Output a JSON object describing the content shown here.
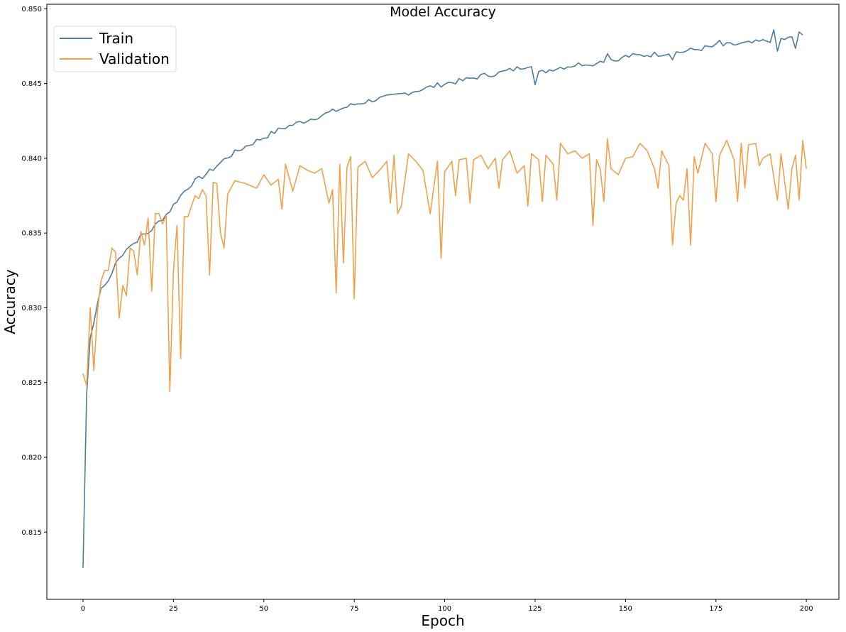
{
  "chart_data": {
    "type": "line",
    "title": "Model Accuracy",
    "xlabel": "Epoch",
    "ylabel": "Accuracy",
    "xlim": [
      -10,
      209
    ],
    "ylim": [
      0.8105,
      0.8503
    ],
    "xticks": [
      0,
      25,
      50,
      75,
      100,
      125,
      150,
      175,
      200
    ],
    "yticks": [
      0.815,
      0.82,
      0.825,
      0.83,
      0.835,
      0.84,
      0.845,
      0.85
    ],
    "ytick_labels": [
      "0.815",
      "0.820",
      "0.825",
      "0.830",
      "0.835",
      "0.840",
      "0.845",
      "0.850"
    ],
    "grid": false,
    "legend_position": "top-left",
    "series": [
      {
        "name": "Train",
        "color": "#4f7c9e",
        "anchors": [
          [
            0,
            0.8126
          ],
          [
            1,
            0.8242
          ],
          [
            2,
            0.828
          ],
          [
            3,
            0.829
          ],
          [
            4,
            0.8303
          ],
          [
            5,
            0.8313
          ],
          [
            6,
            0.8315
          ],
          [
            7,
            0.8318
          ],
          [
            8,
            0.8323
          ],
          [
            9,
            0.833
          ],
          [
            10,
            0.8333
          ],
          [
            12,
            0.834
          ],
          [
            14,
            0.8343
          ],
          [
            16,
            0.8348
          ],
          [
            18,
            0.835
          ],
          [
            20,
            0.8355
          ],
          [
            22,
            0.836
          ],
          [
            24,
            0.8365
          ],
          [
            26,
            0.8372
          ],
          [
            28,
            0.8378
          ],
          [
            30,
            0.8383
          ],
          [
            35,
            0.8391
          ],
          [
            40,
            0.8401
          ],
          [
            45,
            0.8408
          ],
          [
            50,
            0.8414
          ],
          [
            55,
            0.842
          ],
          [
            60,
            0.8424
          ],
          [
            65,
            0.8428
          ],
          [
            70,
            0.8432
          ],
          [
            75,
            0.8436
          ],
          [
            80,
            0.8439
          ],
          [
            85,
            0.8441
          ],
          [
            90,
            0.8444
          ],
          [
            95,
            0.8447
          ],
          [
            100,
            0.845
          ],
          [
            105,
            0.8452
          ],
          [
            110,
            0.8455
          ],
          [
            115,
            0.8457
          ],
          [
            120,
            0.846
          ],
          [
            124,
            0.8463
          ],
          [
            125,
            0.8456
          ],
          [
            130,
            0.846
          ],
          [
            135,
            0.8462
          ],
          [
            140,
            0.8464
          ],
          [
            145,
            0.8466
          ],
          [
            150,
            0.8468
          ],
          [
            155,
            0.8469
          ],
          [
            160,
            0.847
          ],
          [
            165,
            0.8471
          ],
          [
            170,
            0.8473
          ],
          [
            175,
            0.8475
          ],
          [
            180,
            0.8476
          ],
          [
            185,
            0.8477
          ],
          [
            190,
            0.8479
          ],
          [
            195,
            0.848
          ],
          [
            199,
            0.8481
          ]
        ],
        "noise": 0.00018,
        "dips": [
          [
            125,
            0.0007
          ],
          [
            141,
            0.0003
          ],
          [
            148,
            0.0003
          ],
          [
            163,
            0.0003
          ],
          [
            192,
            0.0008
          ],
          [
            197,
            0.0007
          ]
        ],
        "peaks": [
          [
            191,
            0.0005
          ],
          [
            198,
            0.0004
          ],
          [
            145,
            0.0004
          ],
          [
            176,
            0.0003
          ]
        ]
      },
      {
        "name": "Validation",
        "color": "#f0a04b",
        "anchors": [
          [
            0,
            0.8256
          ],
          [
            1,
            0.8248
          ],
          [
            2,
            0.83
          ],
          [
            3,
            0.8258
          ],
          [
            4,
            0.8298
          ],
          [
            5,
            0.8318
          ],
          [
            6,
            0.8325
          ],
          [
            7,
            0.8325
          ],
          [
            8,
            0.834
          ],
          [
            9,
            0.8337
          ],
          [
            10,
            0.8293
          ],
          [
            11,
            0.8315
          ],
          [
            12,
            0.8308
          ],
          [
            13,
            0.834
          ],
          [
            14,
            0.8338
          ],
          [
            15,
            0.8322
          ],
          [
            16,
            0.8351
          ],
          [
            17,
            0.8342
          ],
          [
            18,
            0.836
          ],
          [
            19,
            0.8311
          ],
          [
            20,
            0.8363
          ],
          [
            21,
            0.8363
          ],
          [
            22,
            0.8356
          ],
          [
            23,
            0.8362
          ],
          [
            24,
            0.8244
          ],
          [
            25,
            0.8325
          ],
          [
            26,
            0.8355
          ],
          [
            27,
            0.8266
          ],
          [
            28,
            0.8361
          ],
          [
            29,
            0.8361
          ],
          [
            30,
            0.8368
          ],
          [
            31,
            0.8375
          ],
          [
            32,
            0.8373
          ],
          [
            33,
            0.8379
          ],
          [
            34,
            0.8375
          ],
          [
            35,
            0.8322
          ],
          [
            36,
            0.8384
          ],
          [
            37,
            0.8383
          ],
          [
            38,
            0.835
          ],
          [
            39,
            0.834
          ],
          [
            40,
            0.8376
          ],
          [
            42,
            0.8385
          ],
          [
            45,
            0.8383
          ],
          [
            48,
            0.838
          ],
          [
            50,
            0.8389
          ],
          [
            52,
            0.8382
          ],
          [
            54,
            0.8386
          ],
          [
            55,
            0.8366
          ],
          [
            56,
            0.8396
          ],
          [
            58,
            0.8378
          ],
          [
            60,
            0.8395
          ],
          [
            62,
            0.8392
          ],
          [
            64,
            0.839
          ],
          [
            66,
            0.8393
          ],
          [
            68,
            0.837
          ],
          [
            69,
            0.8379
          ],
          [
            70,
            0.831
          ],
          [
            71,
            0.8396
          ],
          [
            72,
            0.833
          ],
          [
            73,
            0.8394
          ],
          [
            74,
            0.8401
          ],
          [
            75,
            0.8306
          ],
          [
            76,
            0.8394
          ],
          [
            78,
            0.8398
          ],
          [
            80,
            0.8387
          ],
          [
            82,
            0.8392
          ],
          [
            84,
            0.8398
          ],
          [
            85,
            0.837
          ],
          [
            86,
            0.8402
          ],
          [
            87,
            0.8363
          ],
          [
            88,
            0.8368
          ],
          [
            90,
            0.8403
          ],
          [
            92,
            0.8398
          ],
          [
            94,
            0.8392
          ],
          [
            96,
            0.8363
          ],
          [
            98,
            0.8398
          ],
          [
            99,
            0.8333
          ],
          [
            100,
            0.8391
          ],
          [
            102,
            0.8398
          ],
          [
            103,
            0.8375
          ],
          [
            104,
            0.8399
          ],
          [
            106,
            0.84
          ],
          [
            107,
            0.837
          ],
          [
            108,
            0.8399
          ],
          [
            110,
            0.8402
          ],
          [
            112,
            0.8393
          ],
          [
            114,
            0.84
          ],
          [
            115,
            0.838
          ],
          [
            116,
            0.8399
          ],
          [
            118,
            0.8405
          ],
          [
            120,
            0.839
          ],
          [
            122,
            0.8395
          ],
          [
            123,
            0.8368
          ],
          [
            124,
            0.8403
          ],
          [
            126,
            0.8399
          ],
          [
            127,
            0.8371
          ],
          [
            128,
            0.8402
          ],
          [
            130,
            0.8396
          ],
          [
            131,
            0.8372
          ],
          [
            132,
            0.841
          ],
          [
            134,
            0.8403
          ],
          [
            136,
            0.8405
          ],
          [
            138,
            0.84
          ],
          [
            140,
            0.8403
          ],
          [
            141,
            0.8355
          ],
          [
            142,
            0.8399
          ],
          [
            143,
            0.8393
          ],
          [
            144,
            0.8371
          ],
          [
            145,
            0.8413
          ],
          [
            146,
            0.8393
          ],
          [
            148,
            0.8389
          ],
          [
            150,
            0.84
          ],
          [
            152,
            0.8401
          ],
          [
            154,
            0.841
          ],
          [
            156,
            0.8405
          ],
          [
            158,
            0.8393
          ],
          [
            159,
            0.838
          ],
          [
            160,
            0.8405
          ],
          [
            162,
            0.8395
          ],
          [
            163,
            0.8342
          ],
          [
            164,
            0.837
          ],
          [
            165,
            0.8375
          ],
          [
            166,
            0.8372
          ],
          [
            167,
            0.8393
          ],
          [
            168,
            0.8342
          ],
          [
            169,
            0.8401
          ],
          [
            170,
            0.839
          ],
          [
            172,
            0.841
          ],
          [
            174,
            0.8403
          ],
          [
            175,
            0.8371
          ],
          [
            176,
            0.8402
          ],
          [
            178,
            0.8412
          ],
          [
            180,
            0.8399
          ],
          [
            181,
            0.8371
          ],
          [
            182,
            0.841
          ],
          [
            183,
            0.838
          ],
          [
            184,
            0.8409
          ],
          [
            186,
            0.841
          ],
          [
            187,
            0.8395
          ],
          [
            188,
            0.84
          ],
          [
            190,
            0.8403
          ],
          [
            192,
            0.8372
          ],
          [
            193,
            0.8403
          ],
          [
            195,
            0.8366
          ],
          [
            196,
            0.8393
          ],
          [
            197,
            0.8402
          ],
          [
            198,
            0.8372
          ],
          [
            199,
            0.8412
          ],
          [
            200,
            0.8393
          ]
        ],
        "noise": 0.0
      }
    ]
  }
}
